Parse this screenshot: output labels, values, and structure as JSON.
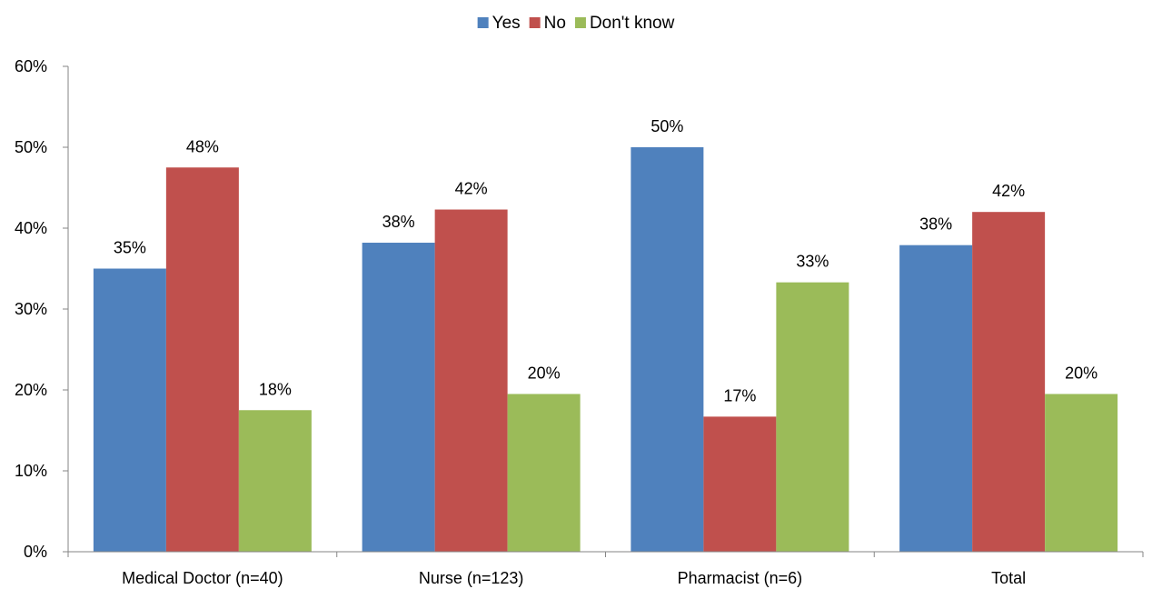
{
  "chart_data": {
    "type": "bar",
    "title": "",
    "xlabel": "",
    "ylabel": "",
    "categories": [
      "Medical Doctor (n=40)",
      "Nurse (n=123)",
      "Pharmacist (n=6)",
      "Total"
    ],
    "series": [
      {
        "name": "Yes",
        "color": "#4F81BD",
        "values": [
          35,
          38.2,
          50,
          37.9
        ],
        "labels": [
          "35%",
          "38%",
          "50%",
          "38%"
        ]
      },
      {
        "name": "No",
        "color": "#C0504D",
        "values": [
          47.5,
          42.3,
          16.7,
          42.0
        ],
        "labels": [
          "48%",
          "42%",
          "17%",
          "42%"
        ]
      },
      {
        "name": "Don't know",
        "color": "#9BBB59",
        "values": [
          17.5,
          19.5,
          33.3,
          19.5
        ],
        "labels": [
          "18%",
          "20%",
          "33%",
          "20%"
        ]
      }
    ],
    "ylim": [
      0,
      60
    ],
    "yticks": [
      0,
      10,
      20,
      30,
      40,
      50,
      60
    ],
    "ytick_labels": [
      "0%",
      "10%",
      "20%",
      "30%",
      "40%",
      "50%",
      "60%"
    ],
    "grid": false,
    "legend_position": "top-center"
  }
}
